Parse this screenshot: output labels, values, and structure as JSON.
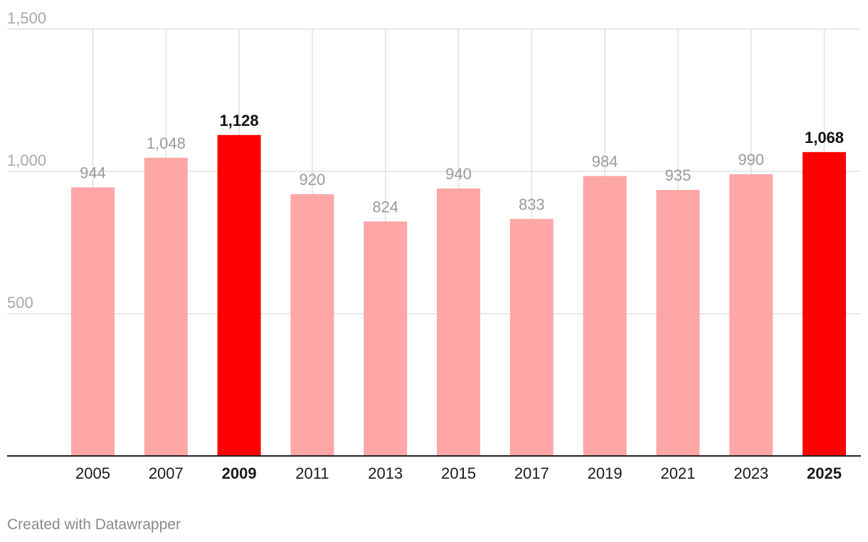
{
  "chart_data": {
    "type": "bar",
    "categories": [
      "2005",
      "2007",
      "2009",
      "2011",
      "2013",
      "2015",
      "2017",
      "2019",
      "2021",
      "2023",
      "2025"
    ],
    "values": [
      944,
      1048,
      1128,
      920,
      824,
      940,
      833,
      984,
      935,
      990,
      1068
    ],
    "value_labels": [
      "944",
      "1,048",
      "1,128",
      "920",
      "824",
      "940",
      "833",
      "984",
      "935",
      "990",
      "1,068"
    ],
    "highlighted": [
      "2009",
      "2025"
    ],
    "ylim": [
      0,
      1500
    ],
    "yticks": [
      500,
      1000,
      1500
    ],
    "ytick_labels": [
      "500",
      "1,000",
      "1,500"
    ],
    "grid": true,
    "colors": {
      "bar": "#ffa6a6",
      "bar_highlight": "#ff0000",
      "label": "#9a9a9a",
      "label_highlight": "#111111",
      "grid": "#e0e0e0",
      "axis": "#222222"
    }
  },
  "footer": {
    "credit": "Created with Datawrapper"
  }
}
